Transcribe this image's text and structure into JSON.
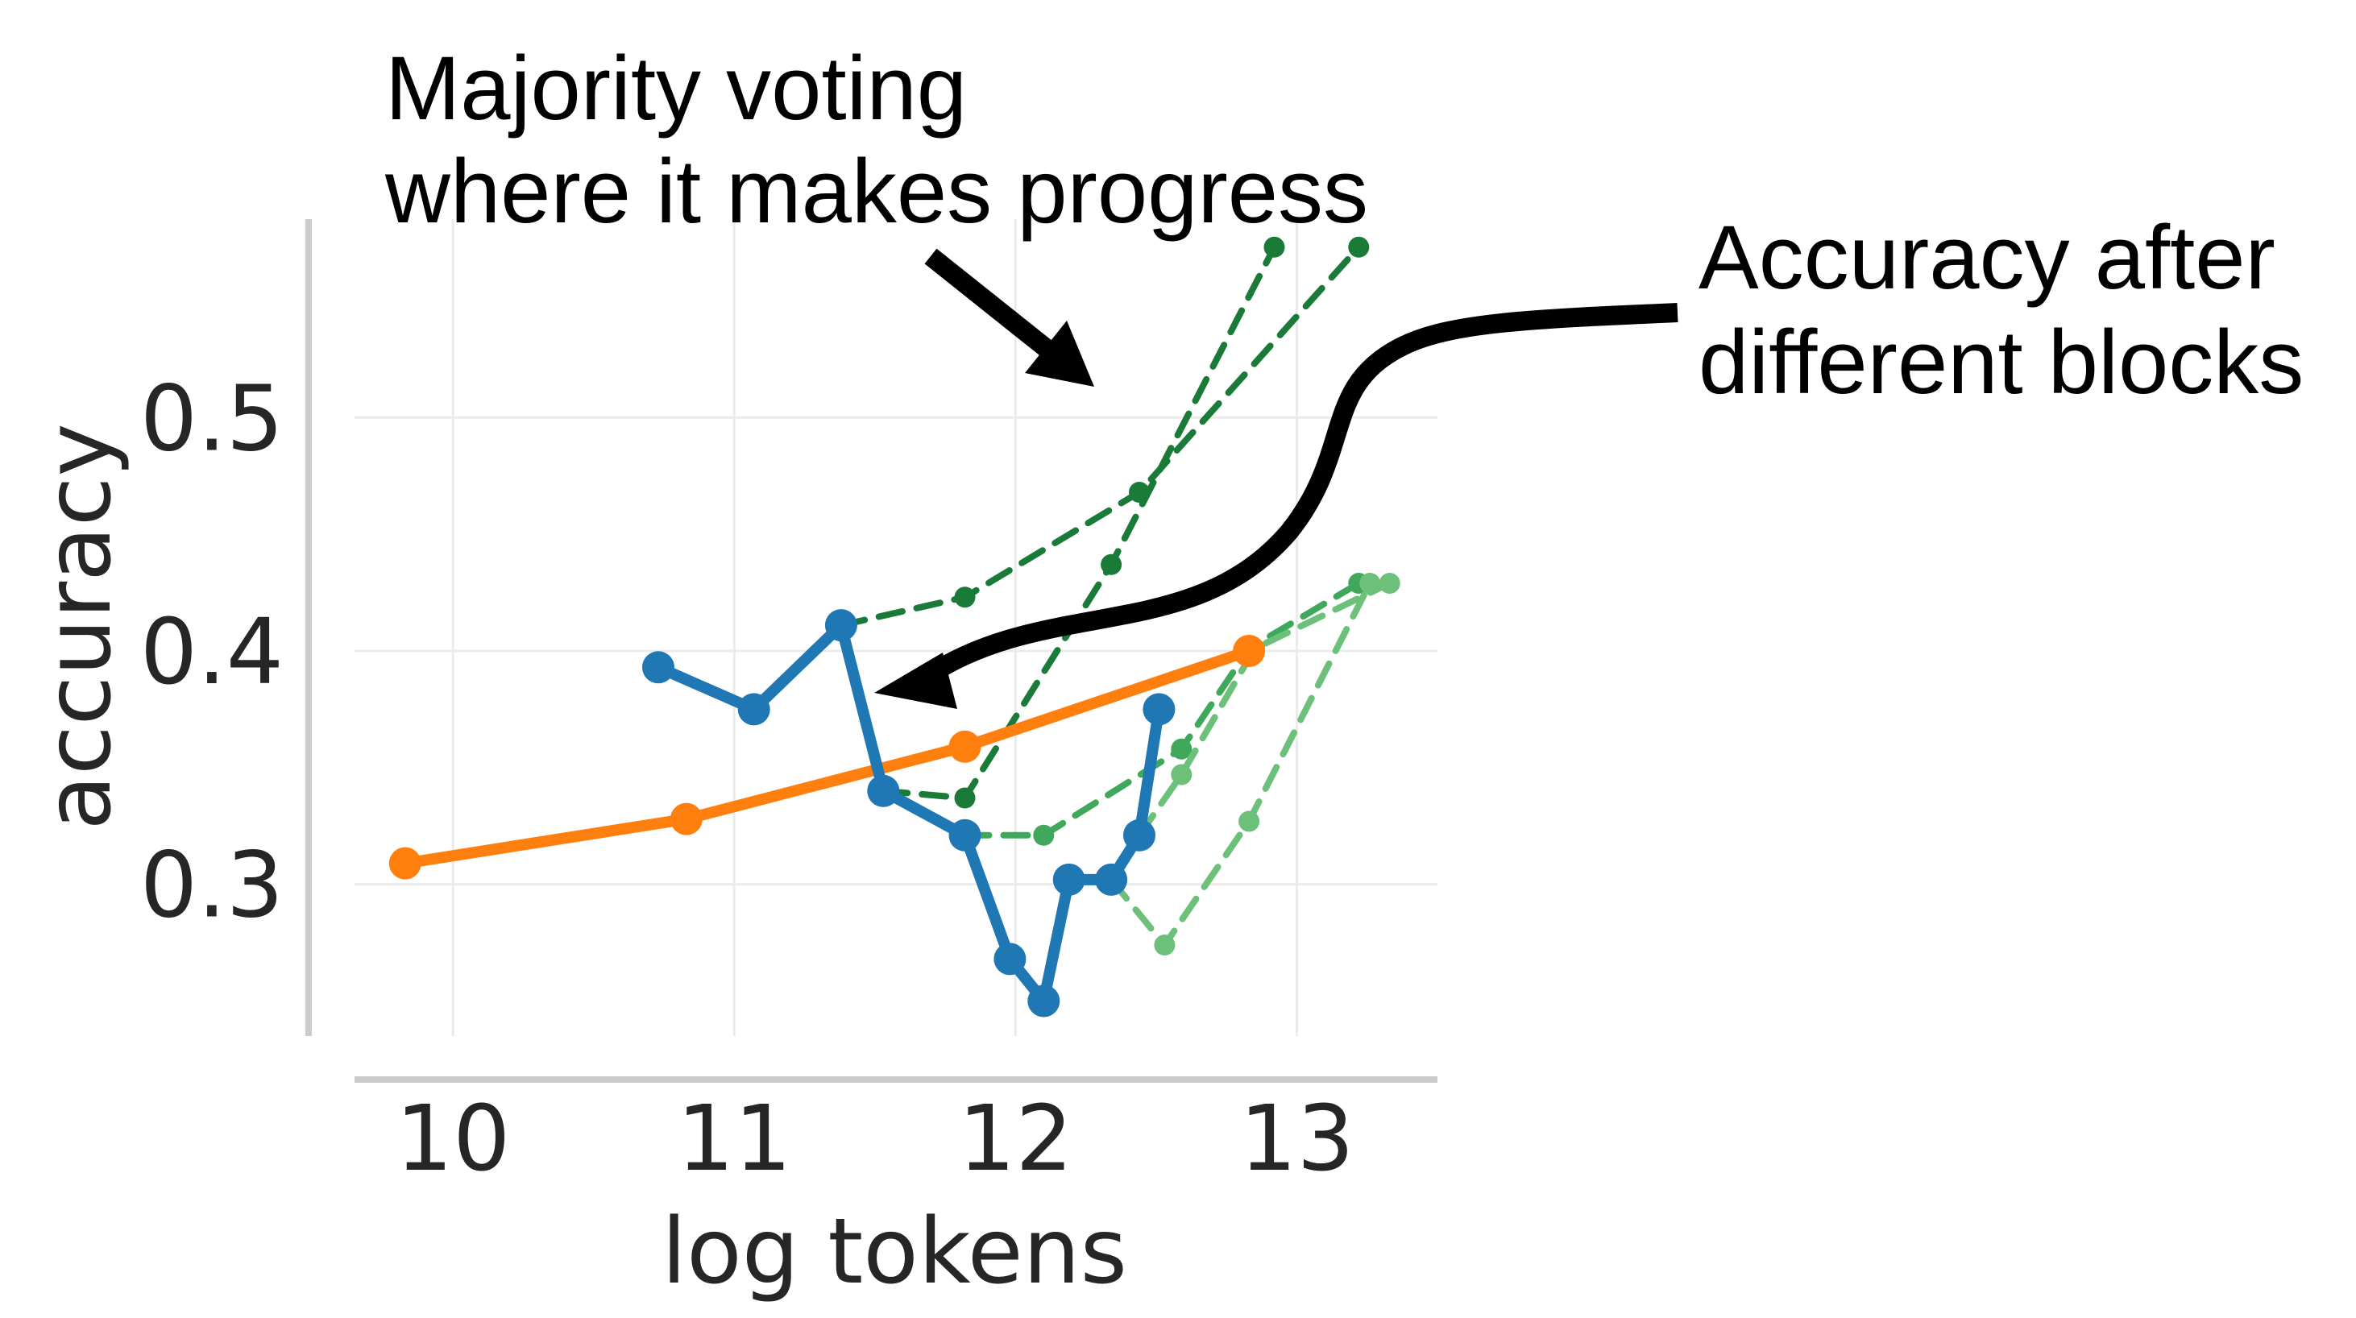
{
  "chart_data": {
    "type": "line",
    "title": "",
    "xlabel": "log tokens",
    "ylabel": "accuracy",
    "xlim": [
      9.65,
      13.5
    ],
    "ylim": [
      0.235,
      0.585
    ],
    "xticks": [
      10,
      11,
      12,
      13
    ],
    "xtick_labels": [
      "10",
      "11",
      "12",
      "13"
    ],
    "yticks": [
      0.3,
      0.4,
      0.5
    ],
    "ytick_labels": [
      "0.3",
      "0.4",
      "0.5"
    ],
    "grid": true,
    "legend": "none",
    "colors": {
      "orange": "#ff7f0e",
      "blue": "#1f77b4",
      "dark_green": "#1a7a38",
      "mid_green": "#3fa85a",
      "light_green": "#6cc07a"
    },
    "series": [
      {
        "style": "solid",
        "color": "orange",
        "x": [
          9.83,
          10.83,
          11.82,
          12.83
        ],
        "y": [
          0.309,
          0.328,
          0.359,
          0.4
        ]
      },
      {
        "style": "solid",
        "color": "blue",
        "x": [
          10.73,
          11.07,
          11.38,
          11.53,
          11.82,
          11.98,
          12.1,
          12.19,
          12.34,
          12.44,
          12.51
        ],
        "y": [
          0.393,
          0.375,
          0.411,
          0.34,
          0.321,
          0.268,
          0.25,
          0.302,
          0.302,
          0.321,
          0.375
        ]
      },
      {
        "style": "dashed",
        "color": "dark_green",
        "x": [
          11.38,
          11.82,
          12.44,
          13.22
        ],
        "y": [
          0.411,
          0.423,
          0.468,
          0.573
        ]
      },
      {
        "style": "dashed",
        "color": "dark_green",
        "x": [
          11.53,
          11.82,
          12.34,
          12.92
        ],
        "y": [
          0.34,
          0.337,
          0.437,
          0.573
        ]
      },
      {
        "style": "dashed",
        "color": "mid_green",
        "x": [
          11.82,
          12.1,
          12.59,
          12.83,
          13.22
        ],
        "y": [
          0.321,
          0.321,
          0.358,
          0.401,
          0.429
        ]
      },
      {
        "style": "dashed",
        "color": "light_green",
        "x": [
          12.34,
          12.53,
          12.83,
          13.26
        ],
        "y": [
          0.302,
          0.274,
          0.327,
          0.429
        ]
      },
      {
        "style": "dashed",
        "color": "light_green",
        "x": [
          12.44,
          12.59,
          12.85,
          13.33
        ],
        "y": [
          0.321,
          0.347,
          0.401,
          0.429
        ]
      }
    ],
    "annotations": [
      {
        "lines": [
          "Majority voting",
          "where it makes progress"
        ]
      },
      {
        "lines": [
          "Accuracy after",
          "different blocks"
        ]
      }
    ]
  }
}
